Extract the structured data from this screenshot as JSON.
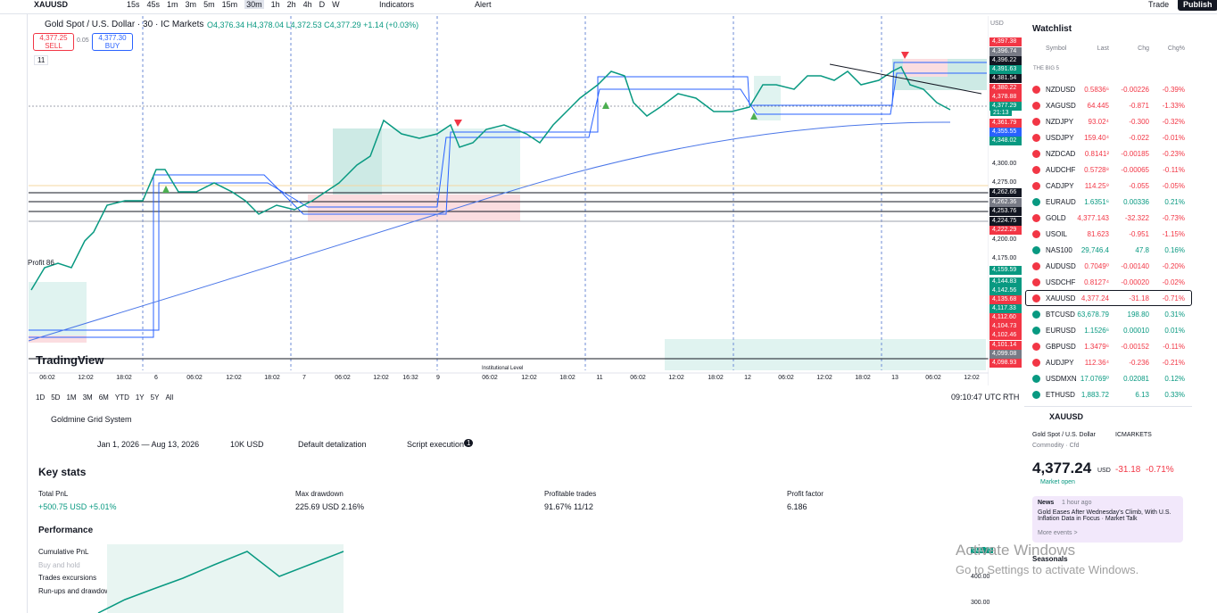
{
  "top_bar": {
    "symbol": "XAUUSD",
    "timeframes": [
      "15s",
      "45s",
      "1m",
      "3m",
      "5m",
      "15m",
      "30m",
      "1h",
      "2h",
      "4h",
      "D",
      "W"
    ],
    "indicators": "Indicators",
    "alert": "Alert",
    "trade": "Trade",
    "publish": "Publish"
  },
  "chart": {
    "title": "Gold Spot / U.S. Dollar · 30 · IC Markets",
    "ohlc": "O4,376.34 H4,378.04 L4,372.53 C4,377.29 +1.14 (+0.03%)",
    "sell_price": "4,377.25",
    "sell": "SELL",
    "spread": "0.05",
    "buy_price": "4,377.30",
    "buy": "BUY",
    "indicator_count": "11",
    "currency": "USD",
    "logo": "TradingView",
    "profit_label": "Profit 86",
    "level_label": "Institutional Level",
    "countdown": "21:13",
    "price_axis": [
      {
        "label": "4,397.38",
        "color": "#f23645"
      },
      {
        "label": "4,396.74",
        "color": "#787b86"
      },
      {
        "label": "4,396.22",
        "color": "#131722"
      },
      {
        "label": "4,391.63",
        "color": "#089981"
      },
      {
        "label": "4,381.54",
        "color": "#131722"
      },
      {
        "label": "4,380.22",
        "color": "#f23645"
      },
      {
        "label": "4,378.88",
        "color": "#f23645"
      },
      {
        "label": "4,377.29",
        "color": "#089981"
      },
      {
        "label": "4,361.79",
        "color": "#f23645"
      },
      {
        "label": "4,355.55",
        "color": "#2962ff"
      },
      {
        "label": "4,348.02",
        "color": "#089981"
      },
      {
        "label": "4,300.00",
        "color": ""
      },
      {
        "label": "4,275.00",
        "color": ""
      },
      {
        "label": "4,262.66",
        "color": "#131722"
      },
      {
        "label": "4,262.36",
        "color": "#787b86"
      },
      {
        "label": "4,253.76",
        "color": "#131722"
      },
      {
        "label": "4,224.75",
        "color": "#131722"
      },
      {
        "label": "4,222.29",
        "color": "#f23645"
      },
      {
        "label": "4,200.00",
        "color": ""
      },
      {
        "label": "4,175.00",
        "color": ""
      },
      {
        "label": "4,159.59",
        "color": "#089981"
      },
      {
        "label": "4,144.83",
        "color": "#089981"
      },
      {
        "label": "4,142.56",
        "color": "#089981"
      },
      {
        "label": "4,135.68",
        "color": "#f23645"
      },
      {
        "label": "4,117.33",
        "color": "#089981"
      },
      {
        "label": "4,112.60",
        "color": "#f23645"
      },
      {
        "label": "4,104.73",
        "color": "#f23645"
      },
      {
        "label": "4,102.46",
        "color": "#f23645"
      },
      {
        "label": "4,101.14",
        "color": "#f23645"
      },
      {
        "label": "4,099.08",
        "color": "#787b86"
      },
      {
        "label": "4,098.93",
        "color": "#f23645"
      }
    ],
    "time_axis": [
      "06:02",
      "12:02",
      "18:02",
      "6",
      "06:02",
      "12:02",
      "18:02",
      "7",
      "06:02",
      "12:02",
      "16:32",
      "9",
      "06:02",
      "12:02",
      "18:02",
      "11",
      "06:02",
      "12:02",
      "18:02",
      "12",
      "06:02",
      "12:02",
      "18:02",
      "13",
      "06:02",
      "12:02"
    ],
    "ranges": [
      "1D",
      "5D",
      "1M",
      "3M",
      "6M",
      "YTD",
      "1Y",
      "5Y",
      "All"
    ],
    "clock": "09:10:47 UTC",
    "rth": "RTH"
  },
  "watchlist": {
    "title": "Watchlist",
    "columns": [
      "Symbol",
      "Last",
      "Chg",
      "Chg%"
    ],
    "section": "THE BIG 5",
    "rows": [
      [
        "NZDUSD",
        "0.5836⁶",
        "-0.00226",
        "-0.39%"
      ],
      [
        "XAGUSD",
        "64.445",
        "-0.871",
        "-1.33%"
      ],
      [
        "NZDJPY",
        "93.02⁴",
        "-0.300",
        "-0.32%"
      ],
      [
        "USDJPY",
        "159.40⁴",
        "-0.022",
        "-0.01%"
      ],
      [
        "NZDCAD",
        "0.8141²",
        "-0.00185",
        "-0.23%"
      ],
      [
        "AUDCHF",
        "0.5728⁸",
        "-0.00065",
        "-0.11%"
      ],
      [
        "CADJPY",
        "114.25⁹",
        "-0.055",
        "-0.05%"
      ],
      [
        "EURAUD",
        "1.6351⁶",
        "0.00336",
        "0.21%"
      ],
      [
        "GOLD",
        "4,377.143",
        "-32.322",
        "-0.73%"
      ],
      [
        "USOIL",
        "81.623",
        "-0.951",
        "-1.15%"
      ],
      [
        "NAS100",
        "29,746.4",
        "47.8",
        "0.16%"
      ],
      [
        "AUDUSD",
        "0.7049⁰",
        "-0.00140",
        "-0.20%"
      ],
      [
        "USDCHF",
        "0.8127⁴",
        "-0.00020",
        "-0.02%"
      ],
      [
        "XAUUSD",
        "4,377.24",
        "-31.18",
        "-0.71%"
      ],
      [
        "BTCUSD",
        "63,678.79",
        "198.80",
        "0.31%"
      ],
      [
        "EURUSD",
        "1.1526⁶",
        "0.00010",
        "0.01%"
      ],
      [
        "GBPUSD",
        "1.3479⁶",
        "-0.00152",
        "-0.11%"
      ],
      [
        "AUDJPY",
        "112.36⁴",
        "-0.236",
        "-0.21%"
      ],
      [
        "USDMXN",
        "17.0769⁰",
        "0.02081",
        "0.12%"
      ],
      [
        "ETHUSD",
        "1,883.72",
        "6.13",
        "0.33%"
      ]
    ]
  },
  "detail": {
    "symbol": "XAUUSD",
    "name": "Gold Spot / U.S. Dollar",
    "exchange": "ICMARKETS",
    "kind": "Commodity · Cfd",
    "price": "4,377.24",
    "currency": "USD",
    "change": "-31.18",
    "change_pct": "-0.71%",
    "status": "Market open",
    "news": "News",
    "news_time": "1 hour ago",
    "headline": "Gold Eases After Wednesday's Climb, With U.S. Inflation Data in Focus · Market Talk",
    "more": "More events >",
    "seasonals": "Seasonals"
  },
  "strategy": {
    "name": "Goldmine Grid System",
    "date_range": "Jan 1, 2026 — Aug 13, 2026",
    "capital": "10K USD",
    "detalization": "Default detalization",
    "script": "Script execution",
    "badge": "1",
    "key_stats": "Key stats",
    "stats": [
      {
        "label": "Total PnL",
        "value": "+500.75 USD +5.01%"
      },
      {
        "label": "Max drawdown",
        "value": "225.69 USD 2.16%"
      },
      {
        "label": "Profitable trades",
        "value": "91.67% 11/12"
      },
      {
        "label": "Profit factor",
        "value": "6.186"
      }
    ],
    "performance": "Performance",
    "items": [
      "Cumulative PnL",
      "Buy and hold",
      "Trades excursions",
      "Run-ups and drawdowns"
    ],
    "axis": [
      "500.75",
      "400.00",
      "300.00"
    ]
  },
  "watermark": {
    "title": "Activate Windows",
    "subtitle": "Go to Settings to activate Windows."
  }
}
